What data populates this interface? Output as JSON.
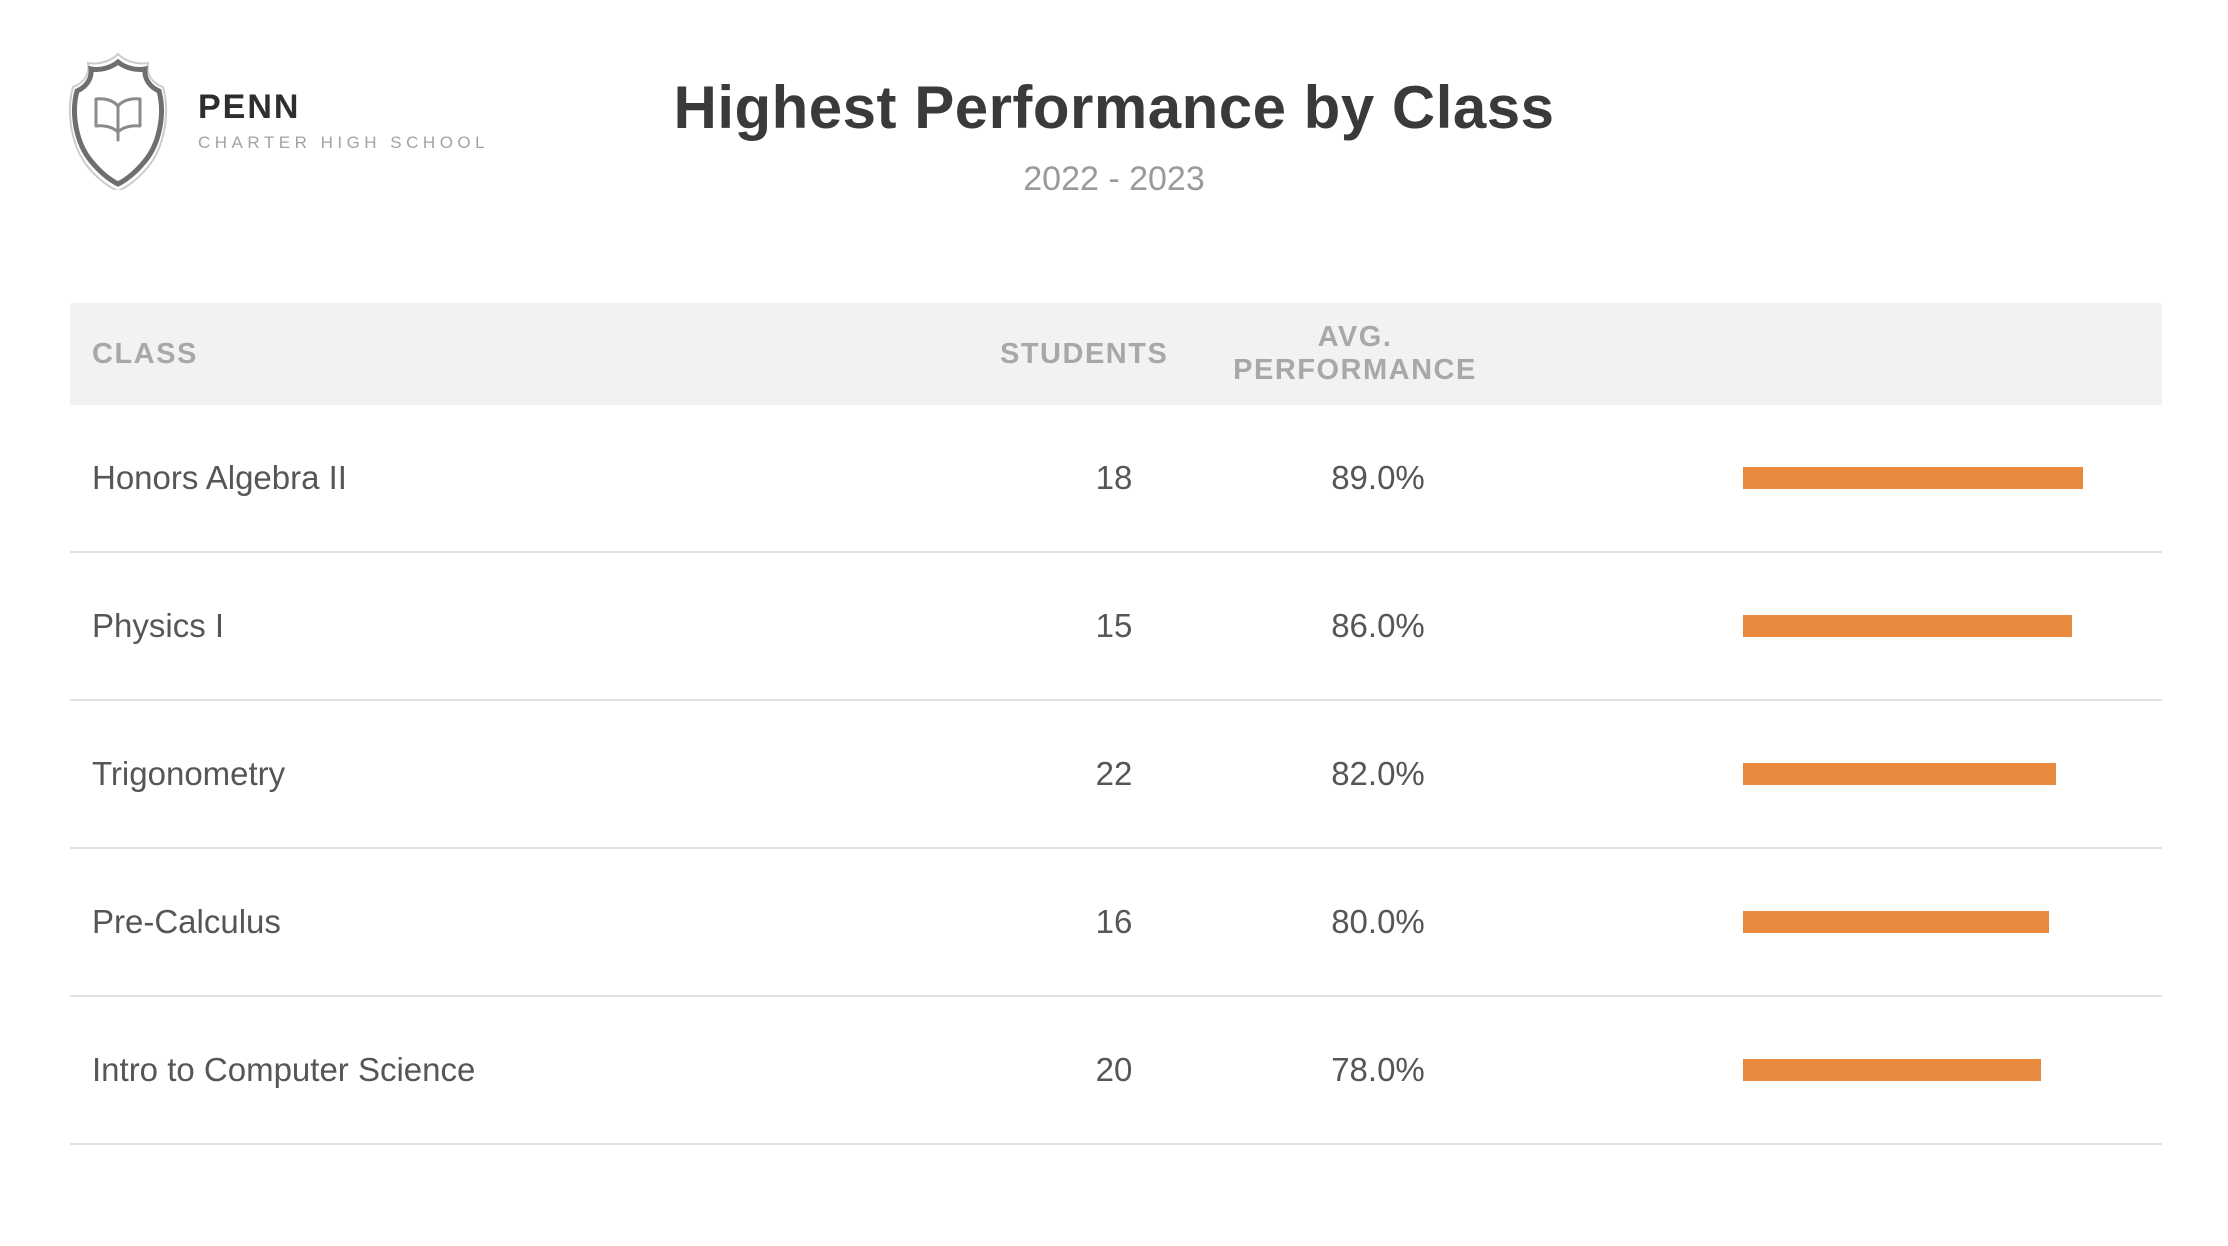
{
  "logo": {
    "icon": "shield-book-icon",
    "name": "PENN",
    "subname": "CHARTER HIGH SCHOOL"
  },
  "header": {
    "title": "Highest Performance by Class",
    "subtitle": "2022 - 2023"
  },
  "table": {
    "columns": [
      "CLASS",
      "STUDENTS",
      "AVG. PERFORMANCE"
    ],
    "rows": [
      {
        "class": "Honors Algebra II",
        "students": "18",
        "avg_performance": "89.0%",
        "bar_pct": 89
      },
      {
        "class": "Physics I",
        "students": "15",
        "avg_performance": "86.0%",
        "bar_pct": 86
      },
      {
        "class": "Trigonometry",
        "students": "22",
        "avg_performance": "82.0%",
        "bar_pct": 82
      },
      {
        "class": "Pre-Calculus",
        "students": "16",
        "avg_performance": "80.0%",
        "bar_pct": 80
      },
      {
        "class": "Intro to Computer Science",
        "students": "20",
        "avg_performance": "78.0%",
        "bar_pct": 78
      }
    ]
  },
  "chart_data": {
    "type": "bar",
    "orientation": "horizontal",
    "title": "Highest Performance by Class",
    "subtitle": "2022 - 2023",
    "categories": [
      "Honors Algebra II",
      "Physics I",
      "Trigonometry",
      "Pre-Calculus",
      "Intro to Computer Science"
    ],
    "series": [
      {
        "name": "Students",
        "values": [
          18,
          15,
          22,
          16,
          20
        ]
      },
      {
        "name": "Avg. Performance (%)",
        "values": [
          89.0,
          86.0,
          82.0,
          80.0,
          78.0
        ]
      }
    ],
    "bar_series": "Avg. Performance (%)",
    "xlim": [
      0,
      100
    ],
    "grid": false,
    "legend": false,
    "bar_color": "#E78A3E"
  },
  "colors": {
    "bar": "#E78A3E",
    "header_bg": "#F2F2F3",
    "header_text": "#A8A8A8",
    "row_text": "#565656",
    "divider": "#E1E1E1",
    "title_text": "#3A3A3A",
    "subtitle_text": "#9A9A9A"
  }
}
